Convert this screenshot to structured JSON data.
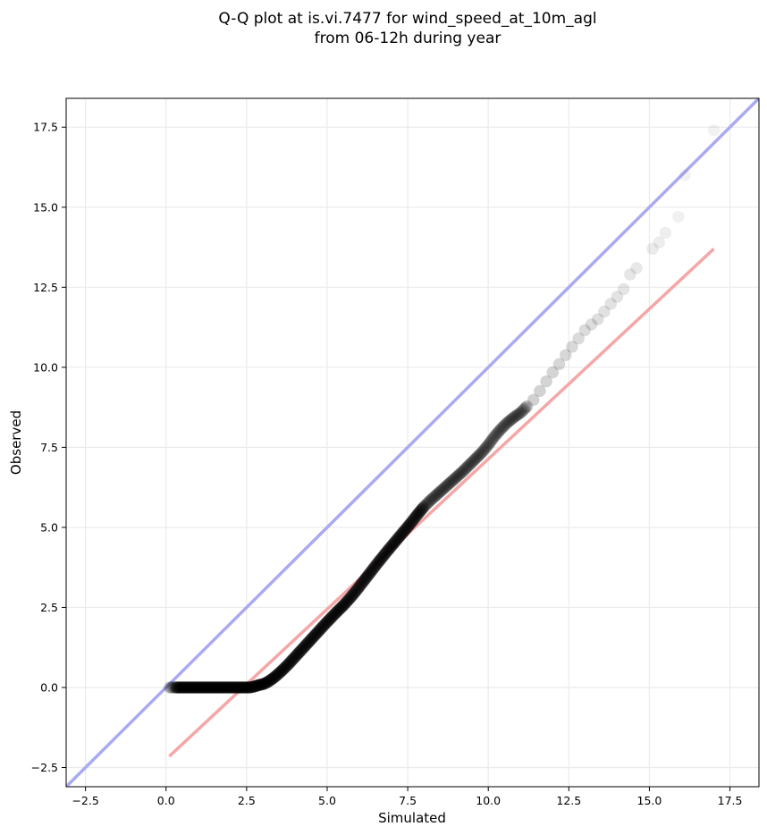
{
  "chart_data": {
    "type": "scatter",
    "title_lines": [
      "Q-Q plot at is.vi.7477 for wind_speed_at_10m_agl",
      "from 06-12h during year"
    ],
    "xlabel": "Simulated",
    "ylabel": "Observed",
    "xlim": [
      -3.1,
      18.4
    ],
    "ylim": [
      -3.1,
      18.4
    ],
    "x_ticks": [
      -2.5,
      0.0,
      2.5,
      5.0,
      7.5,
      10.0,
      12.5,
      15.0,
      17.5
    ],
    "x_tick_labels": [
      "−2.5",
      "0.0",
      "2.5",
      "5.0",
      "7.5",
      "10.0",
      "12.5",
      "15.0",
      "17.5"
    ],
    "y_ticks": [
      -2.5,
      0.0,
      2.5,
      5.0,
      7.5,
      10.0,
      12.5,
      15.0,
      17.5
    ],
    "y_tick_labels": [
      "−2.5",
      "0.0",
      "2.5",
      "5.0",
      "7.5",
      "10.0",
      "12.5",
      "15.0",
      "17.5"
    ],
    "grid": true,
    "colors": {
      "points": "#000000",
      "identity_line": "#aaaaf2",
      "fit_line": "#f5a6a6",
      "grid": "#ebebeb"
    },
    "lines": [
      {
        "kind": "identity",
        "points": [
          [
            -3.1,
            -3.1
          ],
          [
            18.4,
            18.4
          ]
        ]
      },
      {
        "kind": "fit",
        "points": [
          [
            0.1,
            -2.15
          ],
          [
            17.0,
            13.7
          ]
        ]
      }
    ],
    "quantiles": [
      [
        0.1,
        0.0
      ],
      [
        0.2,
        0.0
      ],
      [
        0.3,
        0.0
      ],
      [
        0.4,
        0.0
      ],
      [
        0.5,
        0.0
      ],
      [
        0.6,
        0.0
      ],
      [
        0.7,
        0.0
      ],
      [
        0.8,
        0.0
      ],
      [
        0.9,
        0.0
      ],
      [
        1.0,
        0.0
      ],
      [
        1.1,
        0.0
      ],
      [
        1.2,
        0.0
      ],
      [
        1.3,
        0.0
      ],
      [
        1.4,
        0.0
      ],
      [
        1.5,
        0.0
      ],
      [
        1.6,
        0.0
      ],
      [
        1.7,
        0.0
      ],
      [
        1.8,
        0.0
      ],
      [
        1.9,
        0.0
      ],
      [
        2.0,
        0.0
      ],
      [
        2.1,
        0.0
      ],
      [
        2.2,
        0.0
      ],
      [
        2.3,
        0.0
      ],
      [
        2.4,
        0.0
      ],
      [
        2.5,
        0.0
      ],
      [
        2.6,
        0.0
      ],
      [
        2.7,
        0.02
      ],
      [
        2.8,
        0.05
      ],
      [
        2.9,
        0.08
      ],
      [
        3.0,
        0.1
      ],
      [
        3.1,
        0.14
      ],
      [
        3.2,
        0.2
      ],
      [
        3.3,
        0.27
      ],
      [
        3.4,
        0.35
      ],
      [
        3.5,
        0.44
      ],
      [
        3.6,
        0.53
      ],
      [
        3.7,
        0.63
      ],
      [
        3.8,
        0.73
      ],
      [
        3.9,
        0.84
      ],
      [
        4.0,
        0.95
      ],
      [
        4.1,
        1.06
      ],
      [
        4.2,
        1.17
      ],
      [
        4.3,
        1.28
      ],
      [
        4.4,
        1.39
      ],
      [
        4.5,
        1.5
      ],
      [
        4.6,
        1.61
      ],
      [
        4.7,
        1.72
      ],
      [
        4.8,
        1.83
      ],
      [
        4.9,
        1.94
      ],
      [
        5.0,
        2.05
      ],
      [
        5.1,
        2.15
      ],
      [
        5.2,
        2.26
      ],
      [
        5.3,
        2.36
      ],
      [
        5.4,
        2.46
      ],
      [
        5.5,
        2.56
      ],
      [
        5.6,
        2.67
      ],
      [
        5.7,
        2.78
      ],
      [
        5.8,
        2.9
      ],
      [
        5.9,
        3.02
      ],
      [
        6.0,
        3.15
      ],
      [
        6.1,
        3.28
      ],
      [
        6.2,
        3.41
      ],
      [
        6.3,
        3.54
      ],
      [
        6.4,
        3.67
      ],
      [
        6.5,
        3.8
      ],
      [
        6.6,
        3.93
      ],
      [
        6.7,
        4.05
      ],
      [
        6.8,
        4.18
      ],
      [
        6.9,
        4.3
      ],
      [
        7.0,
        4.42
      ],
      [
        7.1,
        4.54
      ],
      [
        7.2,
        4.66
      ],
      [
        7.3,
        4.78
      ],
      [
        7.4,
        4.9
      ],
      [
        7.5,
        5.02
      ],
      [
        7.6,
        5.14
      ],
      [
        7.7,
        5.27
      ],
      [
        7.8,
        5.4
      ],
      [
        7.9,
        5.52
      ],
      [
        8.0,
        5.64
      ],
      [
        8.2,
        5.84
      ],
      [
        8.4,
        6.02
      ],
      [
        8.6,
        6.2
      ],
      [
        8.8,
        6.38
      ],
      [
        9.0,
        6.56
      ],
      [
        9.2,
        6.74
      ],
      [
        9.4,
        6.94
      ],
      [
        9.6,
        7.14
      ],
      [
        9.8,
        7.34
      ],
      [
        10.0,
        7.58
      ],
      [
        10.2,
        7.85
      ],
      [
        10.4,
        8.08
      ],
      [
        10.6,
        8.28
      ],
      [
        10.8,
        8.44
      ],
      [
        11.0,
        8.58
      ],
      [
        11.2,
        8.78
      ],
      [
        11.4,
        8.98
      ],
      [
        11.6,
        9.26
      ],
      [
        11.8,
        9.56
      ],
      [
        12.0,
        9.84
      ],
      [
        12.2,
        10.1
      ],
      [
        12.4,
        10.38
      ],
      [
        12.6,
        10.64
      ],
      [
        12.8,
        10.9
      ],
      [
        13.0,
        11.16
      ],
      [
        13.2,
        11.34
      ],
      [
        13.4,
        11.5
      ],
      [
        13.6,
        11.74
      ],
      [
        13.8,
        11.98
      ],
      [
        14.0,
        12.2
      ],
      [
        14.2,
        12.44
      ],
      [
        14.4,
        12.9
      ],
      [
        14.6,
        13.1
      ],
      [
        15.1,
        13.7
      ],
      [
        15.3,
        13.9
      ],
      [
        15.5,
        14.2
      ],
      [
        15.9,
        14.7
      ],
      [
        16.1,
        16.0
      ],
      [
        17.0,
        17.4
      ]
    ]
  }
}
